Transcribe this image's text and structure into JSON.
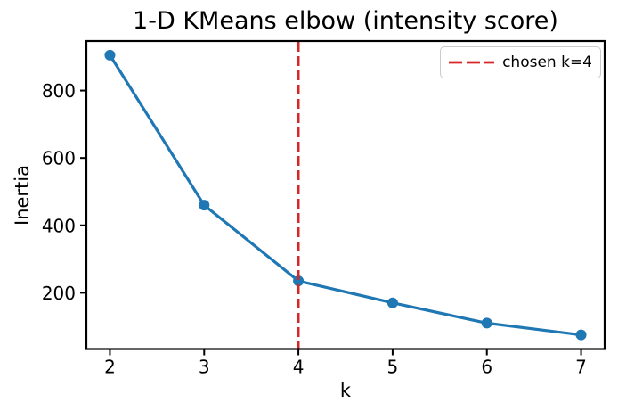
{
  "chart_data": {
    "type": "line",
    "title": "1-D KMeans elbow (intensity score)",
    "xlabel": "k",
    "ylabel": "Inertia",
    "x": [
      2,
      3,
      4,
      5,
      6,
      7
    ],
    "series": [
      {
        "name": "inertia",
        "color": "#1f77b4",
        "marker": "circle",
        "values": [
          905,
          460,
          235,
          170,
          110,
          75
        ]
      }
    ],
    "xticks": [
      2,
      3,
      4,
      5,
      6,
      7
    ],
    "yticks": [
      200,
      400,
      600,
      800
    ],
    "xlim": [
      1.75,
      7.25
    ],
    "ylim": [
      33,
      947
    ],
    "grid": false,
    "annotations": [
      {
        "type": "vline",
        "x": 4,
        "color": "#d62728",
        "style": "dashed"
      }
    ],
    "legend": {
      "position": "upper right",
      "entries": [
        {
          "label": "chosen k=4",
          "color": "#d62728",
          "line_style": "dashed"
        }
      ]
    }
  },
  "colors": {
    "line": "#1f77b4",
    "vline": "#d62728",
    "spine": "#000000",
    "text": "#000000",
    "legend_border": "#cbcbcb",
    "background": "#ffffff"
  }
}
